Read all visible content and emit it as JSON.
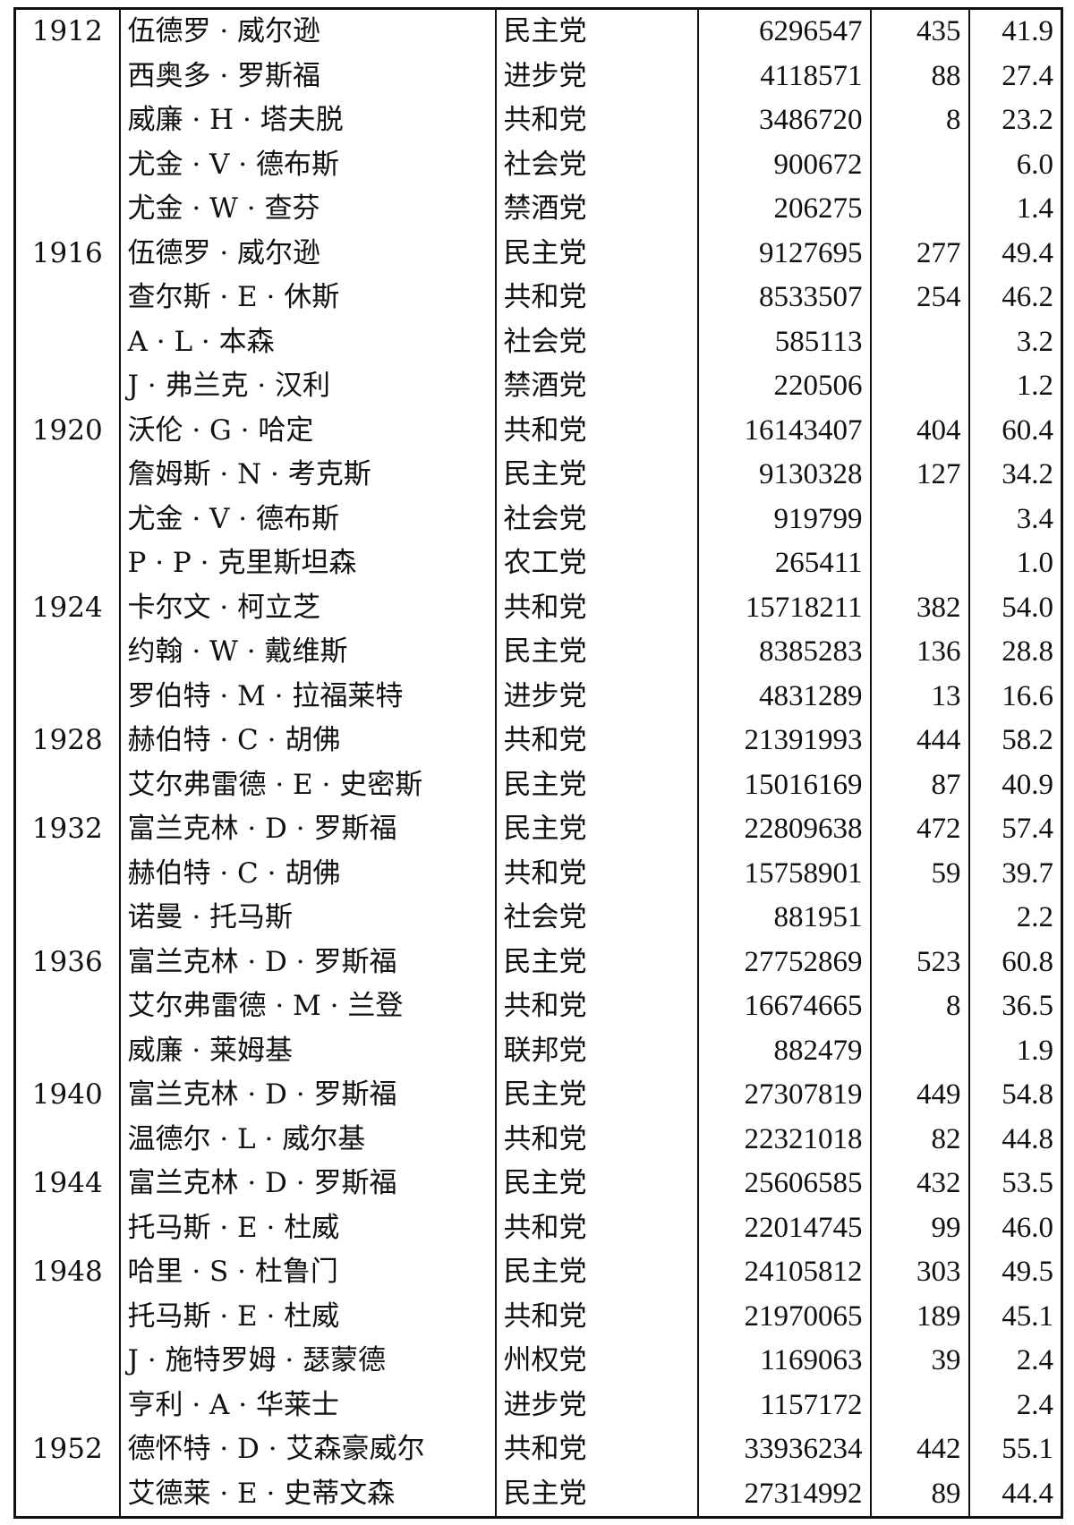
{
  "table": {
    "rows": [
      {
        "year": "1912",
        "candidate": "伍德罗 · 威尔逊",
        "party": "民主党",
        "votes": "6296547",
        "electoral": "435",
        "percent": "41.9"
      },
      {
        "year": "",
        "candidate": "西奥多 · 罗斯福",
        "party": "进步党",
        "votes": "4118571",
        "electoral": "88",
        "percent": "27.4"
      },
      {
        "year": "",
        "candidate": "威廉 · H · 塔夫脱",
        "party": "共和党",
        "votes": "3486720",
        "electoral": "8",
        "percent": "23.2"
      },
      {
        "year": "",
        "candidate": "尤金 · V · 德布斯",
        "party": "社会党",
        "votes": "900672",
        "electoral": "",
        "percent": "6.0"
      },
      {
        "year": "",
        "candidate": "尤金 · W · 查芬",
        "party": "禁酒党",
        "votes": "206275",
        "electoral": "",
        "percent": "1.4"
      },
      {
        "year": "1916",
        "candidate": "伍德罗 · 威尔逊",
        "party": "民主党",
        "votes": "9127695",
        "electoral": "277",
        "percent": "49.4"
      },
      {
        "year": "",
        "candidate": "查尔斯 · E · 休斯",
        "party": "共和党",
        "votes": "8533507",
        "electoral": "254",
        "percent": "46.2"
      },
      {
        "year": "",
        "candidate": "A · L · 本森",
        "party": "社会党",
        "votes": "585113",
        "electoral": "",
        "percent": "3.2"
      },
      {
        "year": "",
        "candidate": "J · 弗兰克 · 汉利",
        "party": "禁酒党",
        "votes": "220506",
        "electoral": "",
        "percent": "1.2"
      },
      {
        "year": "1920",
        "candidate": "沃伦 · G · 哈定",
        "party": "共和党",
        "votes": "16143407",
        "electoral": "404",
        "percent": "60.4"
      },
      {
        "year": "",
        "candidate": "詹姆斯 · N · 考克斯",
        "party": "民主党",
        "votes": "9130328",
        "electoral": "127",
        "percent": "34.2"
      },
      {
        "year": "",
        "candidate": "尤金 · V · 德布斯",
        "party": "社会党",
        "votes": "919799",
        "electoral": "",
        "percent": "3.4"
      },
      {
        "year": "",
        "candidate": "P · P · 克里斯坦森",
        "party": "农工党",
        "votes": "265411",
        "electoral": "",
        "percent": "1.0"
      },
      {
        "year": "1924",
        "candidate": "卡尔文 · 柯立芝",
        "party": "共和党",
        "votes": "15718211",
        "electoral": "382",
        "percent": "54.0"
      },
      {
        "year": "",
        "candidate": "约翰 · W · 戴维斯",
        "party": "民主党",
        "votes": "8385283",
        "electoral": "136",
        "percent": "28.8"
      },
      {
        "year": "",
        "candidate": "罗伯特 · M · 拉福莱特",
        "party": "进步党",
        "votes": "4831289",
        "electoral": "13",
        "percent": "16.6"
      },
      {
        "year": "1928",
        "candidate": "赫伯特 · C · 胡佛",
        "party": "共和党",
        "votes": "21391993",
        "electoral": "444",
        "percent": "58.2"
      },
      {
        "year": "",
        "candidate": "艾尔弗雷德 · E · 史密斯",
        "party": "民主党",
        "votes": "15016169",
        "electoral": "87",
        "percent": "40.9"
      },
      {
        "year": "1932",
        "candidate": "富兰克林 · D · 罗斯福",
        "party": "民主党",
        "votes": "22809638",
        "electoral": "472",
        "percent": "57.4"
      },
      {
        "year": "",
        "candidate": "赫伯特 · C · 胡佛",
        "party": "共和党",
        "votes": "15758901",
        "electoral": "59",
        "percent": "39.7"
      },
      {
        "year": "",
        "candidate": "诺曼 · 托马斯",
        "party": "社会党",
        "votes": "881951",
        "electoral": "",
        "percent": "2.2"
      },
      {
        "year": "1936",
        "candidate": "富兰克林 · D · 罗斯福",
        "party": "民主党",
        "votes": "27752869",
        "electoral": "523",
        "percent": "60.8"
      },
      {
        "year": "",
        "candidate": "艾尔弗雷德 · M · 兰登",
        "party": "共和党",
        "votes": "16674665",
        "electoral": "8",
        "percent": "36.5"
      },
      {
        "year": "",
        "candidate": "威廉 · 莱姆基",
        "party": "联邦党",
        "votes": "882479",
        "electoral": "",
        "percent": "1.9"
      },
      {
        "year": "1940",
        "candidate": "富兰克林 · D · 罗斯福",
        "party": "民主党",
        "votes": "27307819",
        "electoral": "449",
        "percent": "54.8"
      },
      {
        "year": "",
        "candidate": "温德尔 · L · 威尔基",
        "party": "共和党",
        "votes": "22321018",
        "electoral": "82",
        "percent": "44.8"
      },
      {
        "year": "1944",
        "candidate": "富兰克林 · D · 罗斯福",
        "party": "民主党",
        "votes": "25606585",
        "electoral": "432",
        "percent": "53.5"
      },
      {
        "year": "",
        "candidate": "托马斯 · E · 杜威",
        "party": "共和党",
        "votes": "22014745",
        "electoral": "99",
        "percent": "46.0"
      },
      {
        "year": "1948",
        "candidate": "哈里 · S · 杜鲁门",
        "party": "民主党",
        "votes": "24105812",
        "electoral": "303",
        "percent": "49.5"
      },
      {
        "year": "",
        "candidate": "托马斯 · E · 杜威",
        "party": "共和党",
        "votes": "21970065",
        "electoral": "189",
        "percent": "45.1"
      },
      {
        "year": "",
        "candidate": "J · 施特罗姆 · 瑟蒙德",
        "party": "州权党",
        "votes": "1169063",
        "electoral": "39",
        "percent": "2.4"
      },
      {
        "year": "",
        "candidate": "亨利 · A · 华莱士",
        "party": "进步党",
        "votes": "1157172",
        "electoral": "",
        "percent": "2.4"
      },
      {
        "year": "1952",
        "candidate": "德怀特 · D · 艾森豪威尔",
        "party": "共和党",
        "votes": "33936234",
        "electoral": "442",
        "percent": "55.1"
      },
      {
        "year": "",
        "candidate": "艾德莱 · E · 史蒂文森",
        "party": "民主党",
        "votes": "27314992",
        "electoral": "89",
        "percent": "44.4"
      }
    ]
  }
}
